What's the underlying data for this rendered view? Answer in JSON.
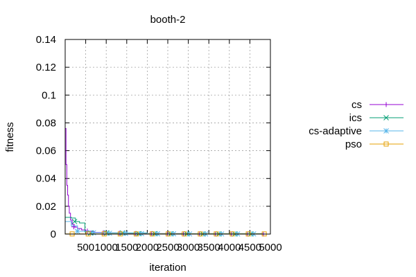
{
  "chart_data": {
    "type": "line",
    "title": "booth-2",
    "xlabel": "iteration",
    "ylabel": "fitness",
    "xlim": [
      0,
      5000
    ],
    "ylim": [
      0,
      0.14
    ],
    "x_ticks": [
      500,
      1000,
      1500,
      2000,
      2500,
      3000,
      3500,
      4000,
      4500,
      5000
    ],
    "x_tick_labels": [
      "500",
      "1000",
      "1500",
      "2000",
      "2500",
      "3000",
      "3500",
      "4000",
      "4500",
      "5000"
    ],
    "y_ticks": [
      0,
      0.02,
      0.04,
      0.06,
      0.08,
      0.1,
      0.12,
      0.14
    ],
    "y_tick_labels": [
      "0",
      "0.02",
      "0.04",
      "0.06",
      "0.08",
      "0.1",
      "0.12",
      "0.14"
    ],
    "grid": true,
    "legend_position": "outside-right-top",
    "series": [
      {
        "name": "cs",
        "color": "#9400d3",
        "marker": "plus",
        "step": true,
        "x": [
          0,
          20,
          40,
          60,
          80,
          100,
          130,
          170,
          220,
          300,
          400,
          500,
          700,
          1000,
          1500,
          2000,
          3000,
          4000,
          4800
        ],
        "y": [
          0.076,
          0.05,
          0.035,
          0.028,
          0.02,
          0.015,
          0.01,
          0.007,
          0.005,
          0.004,
          0.003,
          0.002,
          0.0012,
          0.0008,
          0.0005,
          0.0003,
          0.0001,
          5e-05,
          3e-05
        ],
        "marker_x": [
          210,
          540,
          930,
          1320,
          1710,
          2100,
          2490,
          2880,
          3270,
          3660,
          4050,
          4440,
          4830
        ],
        "marker_y": [
          0.0052,
          0.0022,
          0.001,
          0.0007,
          0.0004,
          0.0003,
          0.0002,
          0.0001,
          0.0001,
          6e-05,
          5e-05,
          4e-05,
          3e-05
        ]
      },
      {
        "name": "ics",
        "color": "#009e73",
        "marker": "cross",
        "step": true,
        "x": [
          0,
          150,
          250,
          350,
          480,
          600,
          1000,
          2000,
          4800
        ],
        "y": [
          0.012,
          0.0115,
          0.009,
          0.008,
          0.0015,
          0.001,
          0.0008,
          0.0003,
          0.0001
        ],
        "marker_x": [
          230,
          620,
          1010,
          1400,
          1790,
          2180,
          2570,
          2960,
          3350,
          3740,
          4130,
          4520
        ],
        "marker_y": [
          0.009,
          0.0008,
          0.0008,
          0.0008,
          0.0003,
          0.0003,
          0.0002,
          0.0002,
          0.0001,
          0.0001,
          0.0001,
          0.0001
        ]
      },
      {
        "name": "cs-adaptive",
        "color": "#56b4e9",
        "marker": "star",
        "step": true,
        "x": [
          0,
          150,
          300,
          600,
          1000,
          2000,
          4800
        ],
        "y": [
          0.009,
          0.006,
          0.002,
          0.001,
          0.0006,
          0.0002,
          0.0001
        ],
        "marker_x": [
          300,
          690,
          1080,
          1470,
          1860,
          2250,
          2640,
          3030,
          3420,
          3810,
          4200,
          4590
        ],
        "marker_y": [
          0.002,
          0.0009,
          0.0006,
          0.0005,
          0.0003,
          0.0002,
          0.0002,
          0.0001,
          0.0001,
          0.0001,
          0.0001,
          0.0001
        ]
      },
      {
        "name": "pso",
        "color": "#e69f00",
        "marker": "square",
        "step": true,
        "x": [
          0,
          4800
        ],
        "y": [
          0.0001,
          0.0001
        ],
        "marker_x": [
          170,
          560,
          950,
          1340,
          1730,
          2120,
          2510,
          2900,
          3290,
          3680,
          4070,
          4460,
          4850
        ],
        "marker_y": [
          0.0001,
          0.0001,
          0.0001,
          0.0001,
          0.0001,
          0.0001,
          0.0001,
          0.0001,
          0.0001,
          0.0001,
          0.0001,
          0.0001,
          0.0001
        ]
      }
    ]
  }
}
